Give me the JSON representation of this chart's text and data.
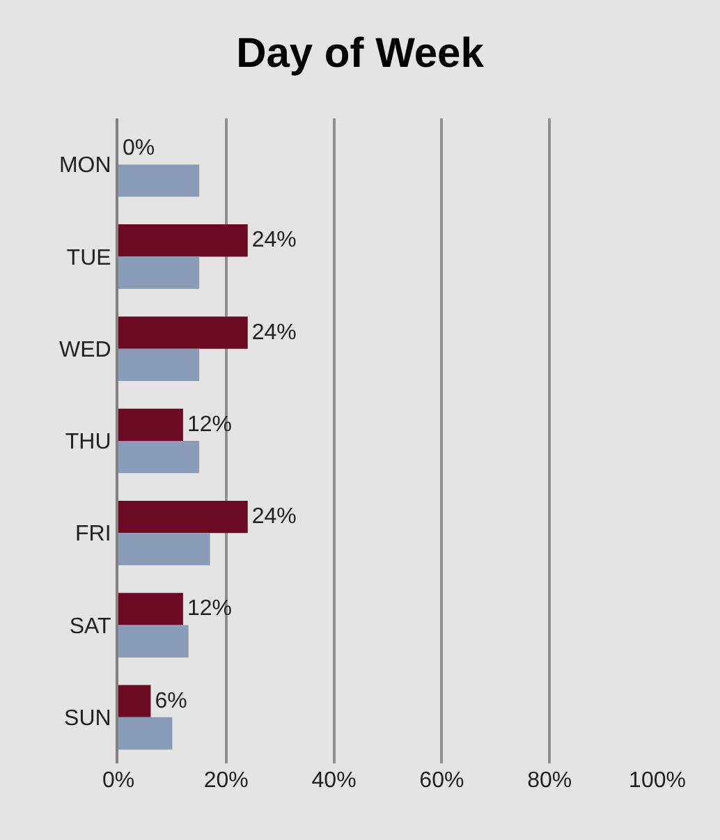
{
  "chart_data": {
    "type": "bar",
    "orientation": "horizontal",
    "title": "Day of Week",
    "categories": [
      "MON",
      "TUE",
      "WED",
      "THU",
      "FRI",
      "SAT",
      "SUN"
    ],
    "series": [
      {
        "color": "#6b0a24",
        "values": [
          0,
          24,
          24,
          12,
          24,
          12,
          6
        ],
        "value_labels": [
          "0%",
          "24%",
          "24%",
          "12%",
          "24%",
          "12%",
          "6%"
        ]
      },
      {
        "color": "#8a9bb7",
        "values": [
          15,
          15,
          15,
          15,
          17,
          13,
          10
        ]
      }
    ],
    "xlim": [
      0,
      100
    ],
    "xticks": [
      {
        "value": 0,
        "label": "0%"
      },
      {
        "value": 20,
        "label": "20%"
      },
      {
        "value": 40,
        "label": "40%"
      },
      {
        "value": 60,
        "label": "60%"
      },
      {
        "value": 80,
        "label": "80%"
      },
      {
        "value": 100,
        "label": "100%"
      }
    ],
    "grid": "x"
  }
}
